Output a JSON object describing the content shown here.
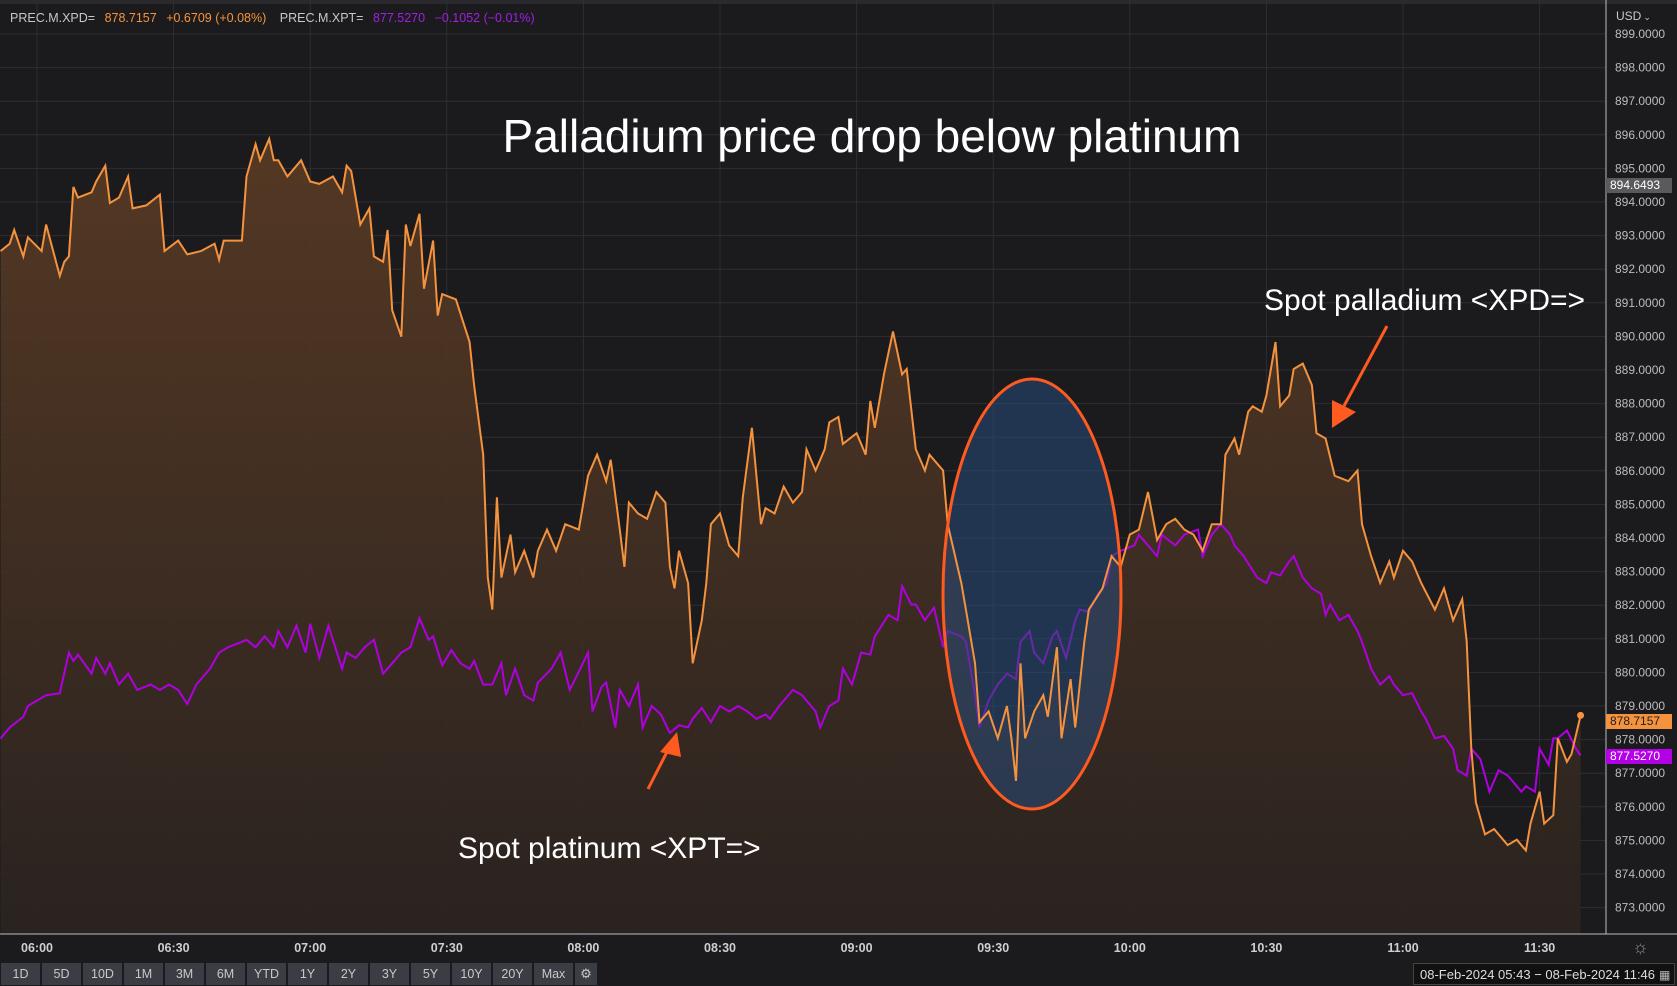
{
  "legend": {
    "xpd": {
      "name": "PREC.M.XPD=",
      "value": "878.7157",
      "change": "+0.6709 (+0.08%)"
    },
    "xpt": {
      "name": "PREC.M.XPT=",
      "value": "877.5270",
      "change": "−0.1052 (−0.01%)"
    }
  },
  "currency": "USD",
  "price_tags": {
    "high": "894.6493",
    "xpd_last": "878.7157",
    "xpt_last": "877.5270"
  },
  "colors": {
    "xpd": "#f5923e",
    "xpt": "#b000e0",
    "annotation": "#ff5a1f",
    "background": "#1b1b1e"
  },
  "annotations": {
    "title": "Palladium price drop below platinum",
    "xpd_label": "Spot palladium <XPD=>",
    "xpt_label": "Spot platinum <XPT=>"
  },
  "periods": [
    "1D",
    "5D",
    "10D",
    "1M",
    "3M",
    "6M",
    "YTD",
    "1Y",
    "2Y",
    "3Y",
    "5Y",
    "10Y",
    "20Y",
    "Max"
  ],
  "date_range": "08-Feb-2024 05:43 − 08-Feb-2024 11:46",
  "chart_data": {
    "type": "line",
    "title": "Palladium price drop below platinum",
    "xlabel": "",
    "ylabel": "",
    "ylim": [
      872.3,
      899.0
    ],
    "y_ticks": [
      "899.0000",
      "898.0000",
      "897.0000",
      "896.0000",
      "895.0000",
      "894.0000",
      "893.0000",
      "892.0000",
      "891.0000",
      "890.0000",
      "889.0000",
      "888.0000",
      "887.0000",
      "886.0000",
      "885.0000",
      "884.0000",
      "883.0000",
      "882.0000",
      "881.0000",
      "880.0000",
      "879.0000",
      "878.0000",
      "877.0000",
      "876.0000",
      "875.0000",
      "874.0000",
      "873.0000"
    ],
    "x_ticks": [
      "06:00",
      "06:30",
      "07:00",
      "07:30",
      "08:00",
      "08:30",
      "09:00",
      "09:30",
      "10:00",
      "10:30",
      "11:00",
      "11:30"
    ],
    "grid": true,
    "legend": "top-left",
    "series": [
      {
        "name": "PREC.M.XPD=",
        "fill": "area",
        "x": [
          "05:52",
          "05:54",
          "05:55",
          "05:57",
          "05:58",
          "06:01",
          "06:02",
          "06:05",
          "06:06",
          "06:07",
          "06:08",
          "06:09",
          "06:12",
          "06:13",
          "06:15",
          "06:16",
          "06:18",
          "06:20",
          "06:21",
          "06:24",
          "06:27",
          "06:28",
          "06:31",
          "06:33",
          "06:36",
          "06:39",
          "06:40",
          "06:41",
          "06:45",
          "06:46",
          "06:48",
          "06:49",
          "06:51",
          "06:52",
          "06:53",
          "06:55",
          "06:58",
          "07:00",
          "07:02",
          "07:05",
          "07:07",
          "07:08",
          "07:09",
          "07:11",
          "07:13",
          "07:14",
          "07:16",
          "07:17",
          "07:18",
          "07:20",
          "07:21",
          "07:22",
          "07:24",
          "07:25",
          "07:27",
          "07:28",
          "07:29",
          "07:32",
          "07:35",
          "07:36",
          "07:38",
          "07:39",
          "07:40",
          "07:41",
          "07:42",
          "07:44",
          "07:45",
          "07:47",
          "07:49",
          "07:50",
          "07:52",
          "07:54",
          "07:56",
          "07:59",
          "08:01",
          "08:03",
          "08:05",
          "08:06",
          "08:08",
          "08:09",
          "08:10",
          "08:12",
          "08:14",
          "08:16",
          "08:18",
          "08:19",
          "08:20",
          "08:21",
          "08:23",
          "08:24",
          "08:26",
          "08:27",
          "08:28",
          "08:30",
          "08:32",
          "08:34",
          "08:35",
          "08:37",
          "08:39",
          "08:40",
          "08:42",
          "08:44",
          "08:46",
          "08:48",
          "08:49",
          "08:51",
          "08:53",
          "08:54",
          "08:56",
          "08:57",
          "09:00",
          "09:02",
          "09:03",
          "09:04",
          "09:06",
          "09:08",
          "09:10",
          "09:11",
          "09:13",
          "09:15",
          "09:16",
          "09:19",
          "09:20",
          "09:23",
          "09:24",
          "09:26",
          "09:27",
          "09:29",
          "09:31",
          "09:33",
          "09:34",
          "09:35",
          "09:36",
          "09:37",
          "09:39",
          "09:41",
          "09:42",
          "09:44",
          "09:45",
          "09:47",
          "09:48",
          "09:50",
          "09:51",
          "09:54",
          "09:56",
          "09:58",
          "10:00",
          "10:02",
          "10:04",
          "10:06",
          "10:08",
          "10:10",
          "10:12",
          "10:14",
          "10:16",
          "10:18",
          "10:20",
          "10:21",
          "10:23",
          "10:24",
          "10:26",
          "10:27",
          "10:29",
          "10:30",
          "10:32",
          "10:33",
          "10:35",
          "10:36",
          "10:38",
          "10:40",
          "10:41",
          "10:43",
          "10:45",
          "10:48",
          "10:50",
          "10:51",
          "10:53",
          "10:55",
          "10:57",
          "10:58",
          "11:00",
          "11:02",
          "11:04",
          "11:07",
          "11:09",
          "11:11",
          "11:13",
          "11:14",
          "11:15",
          "11:16",
          "11:18",
          "11:20",
          "11:21",
          "11:23",
          "11:25",
          "11:27",
          "11:28",
          "11:30",
          "11:31",
          "11:33",
          "11:34",
          "11:36",
          "11:37",
          "11:39"
        ],
        "values": [
          892.54,
          892.76,
          893.17,
          892.38,
          892.95,
          892.54,
          893.33,
          891.8,
          892.22,
          892.38,
          894.45,
          894.13,
          894.29,
          894.61,
          895.08,
          893.97,
          894.13,
          894.76,
          893.81,
          893.9,
          894.22,
          892.54,
          892.85,
          892.44,
          892.54,
          892.76,
          892.28,
          892.85,
          892.85,
          894.76,
          895.72,
          895.24,
          895.88,
          895.24,
          895.24,
          894.76,
          895.24,
          894.61,
          894.54,
          894.76,
          894.29,
          895.08,
          894.92,
          893.33,
          893.81,
          892.38,
          892.22,
          893.17,
          890.78,
          889.99,
          893.33,
          892.69,
          893.65,
          891.42,
          892.85,
          890.62,
          891.26,
          891.1,
          889.83,
          888.55,
          886.48,
          882.82,
          881.87,
          885.21,
          882.82,
          884.1,
          882.98,
          883.62,
          882.82,
          883.62,
          884.25,
          883.62,
          884.41,
          884.25,
          885.85,
          886.48,
          885.69,
          886.33,
          884.25,
          883.14,
          885.05,
          884.73,
          884.57,
          885.37,
          885.05,
          883.14,
          882.5,
          883.62,
          882.66,
          880.27,
          881.55,
          882.66,
          884.41,
          884.73,
          883.78,
          883.46,
          885.21,
          887.28,
          884.41,
          884.89,
          884.73,
          885.53,
          885.05,
          885.37,
          886.64,
          886.01,
          886.64,
          887.44,
          887.6,
          886.8,
          887.12,
          886.48,
          888.08,
          887.28,
          888.87,
          890.15,
          888.87,
          889.03,
          886.64,
          886.01,
          886.48,
          886.01,
          884.41,
          882.66,
          881.87,
          880.27,
          878.52,
          878.84,
          878.04,
          879.0,
          878.04,
          876.77,
          880.27,
          878.04,
          878.84,
          879.32,
          878.68,
          880.75,
          878.04,
          879.8,
          878.36,
          880.91,
          881.87,
          882.5,
          883.46,
          883.14,
          884.1,
          884.25,
          885.37,
          883.94,
          884.41,
          884.57,
          884.25,
          884.1,
          883.62,
          884.41,
          884.41,
          886.48,
          886.96,
          886.48,
          887.76,
          887.92,
          887.76,
          888.24,
          889.83,
          887.92,
          888.24,
          889.03,
          889.19,
          888.55,
          887.12,
          886.96,
          885.85,
          885.69,
          886.01,
          884.41,
          883.46,
          882.66,
          883.3,
          882.82,
          883.62,
          883.3,
          882.66,
          881.87,
          882.5,
          881.55,
          882.18,
          880.91,
          877.73,
          876.13,
          875.18,
          875.34,
          875.18,
          874.86,
          875.02,
          874.7,
          875.5,
          876.45,
          875.5,
          875.75,
          878.04,
          877.34,
          877.57,
          878.72
        ]
      },
      {
        "name": "PREC.M.XPT=",
        "fill": "none",
        "x": [
          "05:52",
          "05:54",
          "05:57",
          "05:58",
          "06:00",
          "06:02",
          "06:05",
          "06:07",
          "06:08",
          "06:09",
          "06:12",
          "06:13",
          "06:15",
          "06:16",
          "06:18",
          "06:20",
          "06:22",
          "06:25",
          "06:27",
          "06:29",
          "06:31",
          "06:33",
          "06:35",
          "06:38",
          "06:40",
          "06:42",
          "06:45",
          "06:46",
          "06:48",
          "06:50",
          "06:52",
          "06:53",
          "06:55",
          "06:57",
          "06:59",
          "07:00",
          "07:02",
          "07:04",
          "07:07",
          "07:08",
          "07:10",
          "07:12",
          "07:14",
          "07:16",
          "07:18",
          "07:20",
          "07:22",
          "07:24",
          "07:26",
          "07:27",
          "07:29",
          "07:31",
          "07:33",
          "07:35",
          "07:36",
          "07:38",
          "07:40",
          "07:42",
          "07:43",
          "07:45",
          "07:47",
          "07:49",
          "07:50",
          "07:53",
          "07:55",
          "07:57",
          "07:59",
          "08:01",
          "08:02",
          "08:04",
          "08:05",
          "08:07",
          "08:08",
          "08:10",
          "08:12",
          "08:13",
          "08:15",
          "08:17",
          "08:19",
          "08:21",
          "08:23",
          "08:24",
          "08:26",
          "08:28",
          "08:30",
          "08:32",
          "08:34",
          "08:36",
          "08:38",
          "08:40",
          "08:41",
          "08:43",
          "08:46",
          "08:48",
          "08:49",
          "08:51",
          "08:52",
          "08:54",
          "08:56",
          "08:57",
          "08:59",
          "09:01",
          "09:03",
          "09:04",
          "09:07",
          "09:09",
          "09:10",
          "09:12",
          "09:13",
          "09:15",
          "09:17",
          "09:19",
          "09:20",
          "09:23",
          "09:24",
          "09:26",
          "09:27",
          "09:29",
          "09:31",
          "09:33",
          "09:35",
          "09:36",
          "09:38",
          "09:39",
          "09:41",
          "09:43",
          "09:44",
          "09:46",
          "09:48",
          "09:49",
          "09:51",
          "09:53",
          "09:55",
          "09:56",
          "09:58",
          "10:01",
          "10:02",
          "10:04",
          "10:06",
          "10:07",
          "10:10",
          "10:12",
          "10:15",
          "10:16",
          "10:18",
          "10:20",
          "10:22",
          "10:23",
          "10:25",
          "10:28",
          "10:30",
          "10:31",
          "10:33",
          "10:35",
          "10:36",
          "10:38",
          "10:40",
          "10:42",
          "10:43",
          "10:44",
          "10:46",
          "10:48",
          "10:50",
          "10:51",
          "10:53",
          "10:55",
          "10:57",
          "10:58",
          "11:00",
          "11:02",
          "11:04",
          "11:05",
          "11:07",
          "11:09",
          "11:11",
          "11:12",
          "11:14",
          "11:15",
          "11:17",
          "11:19",
          "11:21",
          "11:23",
          "11:24",
          "11:26",
          "11:27",
          "11:29",
          "11:30",
          "11:32",
          "11:33",
          "11:34",
          "11:36",
          "11:38",
          "11:39"
        ],
        "values": [
          878.04,
          878.36,
          878.68,
          879.0,
          879.16,
          879.32,
          879.38,
          880.59,
          880.34,
          880.53,
          879.96,
          880.43,
          879.96,
          880.27,
          879.64,
          879.96,
          879.48,
          879.64,
          879.48,
          879.64,
          879.48,
          879.06,
          879.64,
          880.11,
          880.59,
          880.75,
          880.91,
          880.97,
          880.75,
          881.07,
          880.75,
          881.23,
          880.75,
          881.39,
          880.59,
          881.45,
          880.43,
          881.39,
          880.11,
          880.59,
          880.43,
          880.75,
          880.97,
          879.96,
          880.27,
          880.59,
          880.75,
          881.61,
          880.97,
          881.07,
          880.21,
          880.66,
          880.27,
          880.11,
          880.34,
          879.64,
          879.64,
          880.27,
          879.32,
          880.11,
          879.32,
          879.16,
          879.7,
          880.11,
          880.59,
          879.48,
          880.02,
          880.59,
          878.84,
          879.57,
          879.7,
          878.36,
          879.48,
          879.0,
          879.64,
          878.36,
          879.0,
          878.75,
          878.2,
          878.43,
          878.36,
          878.62,
          878.94,
          878.52,
          879.0,
          878.84,
          879.0,
          878.84,
          878.62,
          878.75,
          878.62,
          879.0,
          879.48,
          879.32,
          879.16,
          878.84,
          878.36,
          879.0,
          879.16,
          880.11,
          879.64,
          880.59,
          880.53,
          881.07,
          881.71,
          881.55,
          882.57,
          882.02,
          882.02,
          881.55,
          881.93,
          880.75,
          881.23,
          881.07,
          880.91,
          879.32,
          878.36,
          879.16,
          879.64,
          879.96,
          879.8,
          880.91,
          881.23,
          880.59,
          880.27,
          881.07,
          881.23,
          880.43,
          881.55,
          881.87,
          881.8,
          882.34,
          882.66,
          883.46,
          883.62,
          883.78,
          884.1,
          883.78,
          883.46,
          884.1,
          883.78,
          884.1,
          884.25,
          883.46,
          884.1,
          884.41,
          884.1,
          883.78,
          883.46,
          882.82,
          882.66,
          882.98,
          882.88,
          883.3,
          883.46,
          882.82,
          882.5,
          882.34,
          881.71,
          882.02,
          881.55,
          881.71,
          881.23,
          880.91,
          880.11,
          879.64,
          879.89,
          879.64,
          879.32,
          879.38,
          878.84,
          878.62,
          878.04,
          878.11,
          877.73,
          877.09,
          876.93,
          877.73,
          877.41,
          876.45,
          877.09,
          876.93,
          876.77,
          876.45,
          876.61,
          876.45,
          877.73,
          877.25,
          878.04,
          878.04,
          878.27,
          877.73,
          877.53
        ]
      }
    ]
  }
}
